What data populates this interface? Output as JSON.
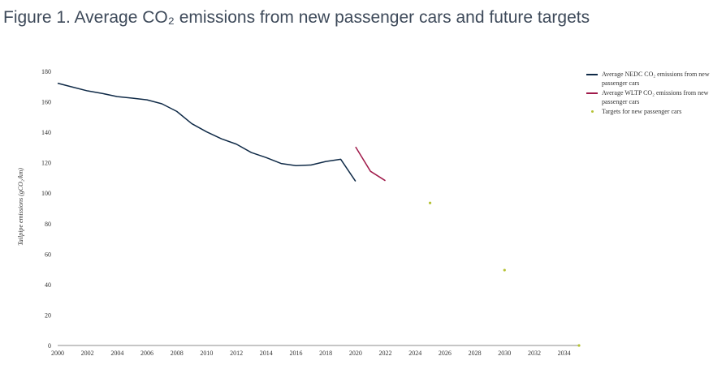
{
  "page": {
    "title": "Figure 1. Average CO₂ emissions from new passenger cars and future targets"
  },
  "chart_data": {
    "type": "line",
    "ylabel": "Tailpipe emissions (gCO₂/km)",
    "xlabel": "",
    "xlim": [
      2000,
      2035
    ],
    "ylim": [
      0,
      180
    ],
    "x_ticks": [
      "2000",
      "2002",
      "2004",
      "2006",
      "2008",
      "2010",
      "2012",
      "2014",
      "2016",
      "2018",
      "2020",
      "2022",
      "2024",
      "2026",
      "2028",
      "2030",
      "2032",
      "2034"
    ],
    "y_ticks": [
      "0",
      "20",
      "40",
      "60",
      "80",
      "100",
      "120",
      "140",
      "160",
      "180"
    ],
    "grid": false,
    "legend_position": "right",
    "series": [
      {
        "name": "Average NEDC CO₂ emissions from new passenger cars",
        "kind": "line",
        "color": "#0f2a47",
        "x": [
          2000,
          2001,
          2002,
          2003,
          2004,
          2005,
          2006,
          2007,
          2008,
          2009,
          2010,
          2011,
          2012,
          2013,
          2014,
          2015,
          2016,
          2017,
          2018,
          2019,
          2020
        ],
        "y": [
          172.2,
          169.7,
          167.2,
          165.5,
          163.4,
          162.4,
          161.3,
          158.7,
          153.7,
          145.7,
          140.3,
          135.7,
          132.2,
          126.7,
          123.4,
          119.5,
          118.1,
          118.5,
          120.8,
          122.3,
          107.8
        ]
      },
      {
        "name": "Average WLTP CO₂ emissions from new passenger cars",
        "kind": "line",
        "color": "#a01a4a",
        "x": [
          2020,
          2021,
          2022
        ],
        "y": [
          130.4,
          114.4,
          108.2
        ]
      },
      {
        "name": "Targets for new passenger cars",
        "kind": "scatter",
        "color": "#b5c234",
        "x": [
          2025,
          2030,
          2035
        ],
        "y": [
          93.6,
          49.5,
          0
        ]
      }
    ]
  }
}
